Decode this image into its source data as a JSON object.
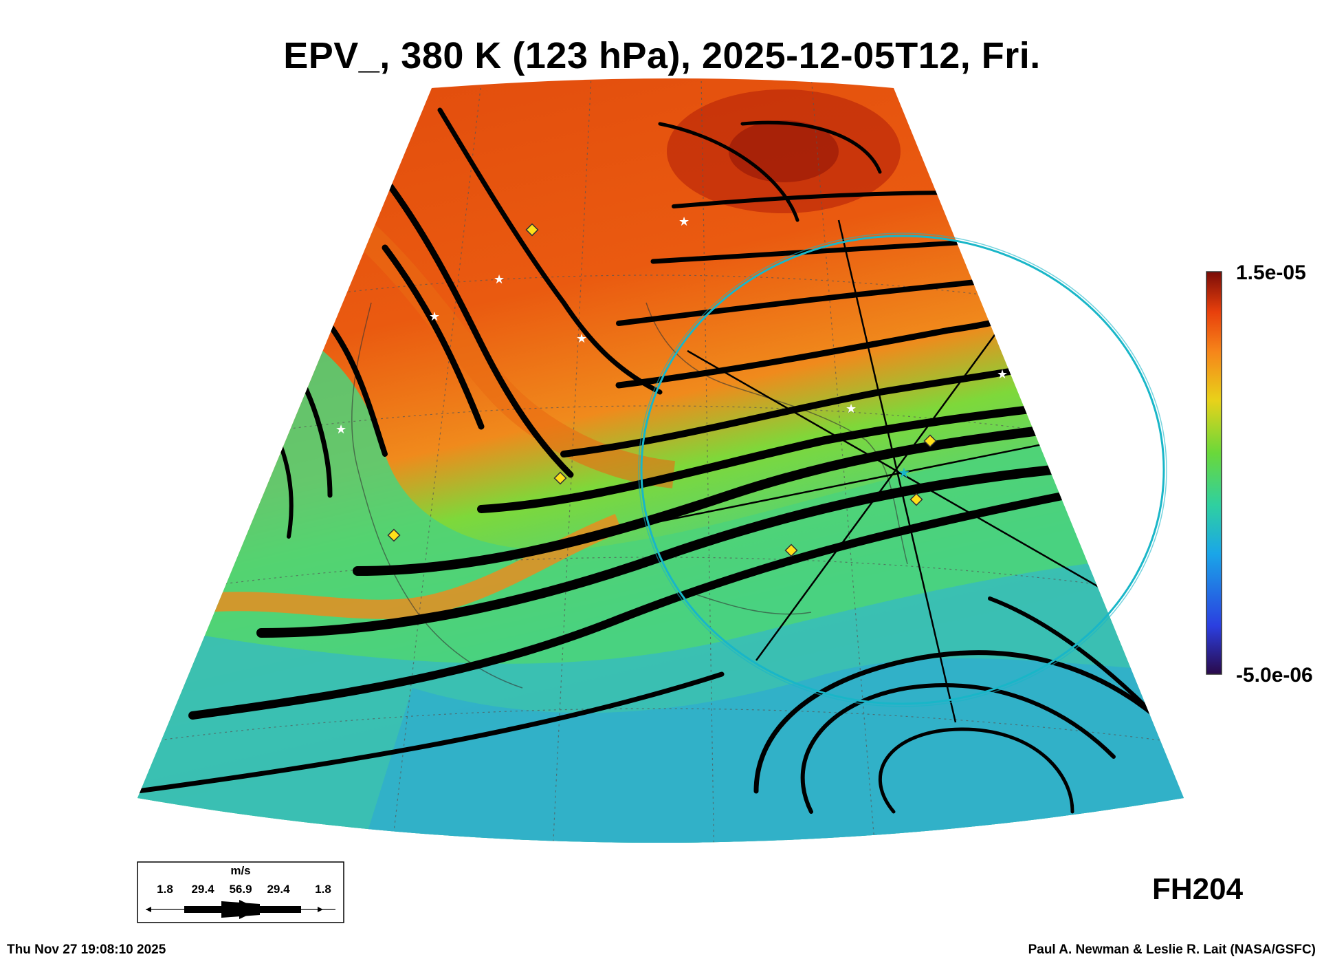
{
  "title": "EPV_, 380 K (123 hPa), 2025-12-05T12, Fri.",
  "colorbar": {
    "max_label": "1.5e-05",
    "min_label": "-5.0e-06",
    "colors": [
      "#2a0a4a",
      "#2b3fe0",
      "#1aa6e8",
      "#2fd0a0",
      "#6ad83a",
      "#e8d21a",
      "#f6861a",
      "#e8400c",
      "#7a0c08"
    ]
  },
  "wind_key": {
    "units": "m/s",
    "values": [
      "1.8",
      "29.4",
      "56.9",
      "29.4",
      "1.8"
    ]
  },
  "forecast_hour": "FH204",
  "timestamp": "Thu Nov 27 19:08:10 2025",
  "credit": "Paul A. Newman & Leslie R. Lait (NASA/GSFC)",
  "colors": {
    "high_pv": "#e8520e",
    "low_pv": "#2fc8b0",
    "circle": "#19b6c8",
    "markers": "#ffe01a"
  }
}
